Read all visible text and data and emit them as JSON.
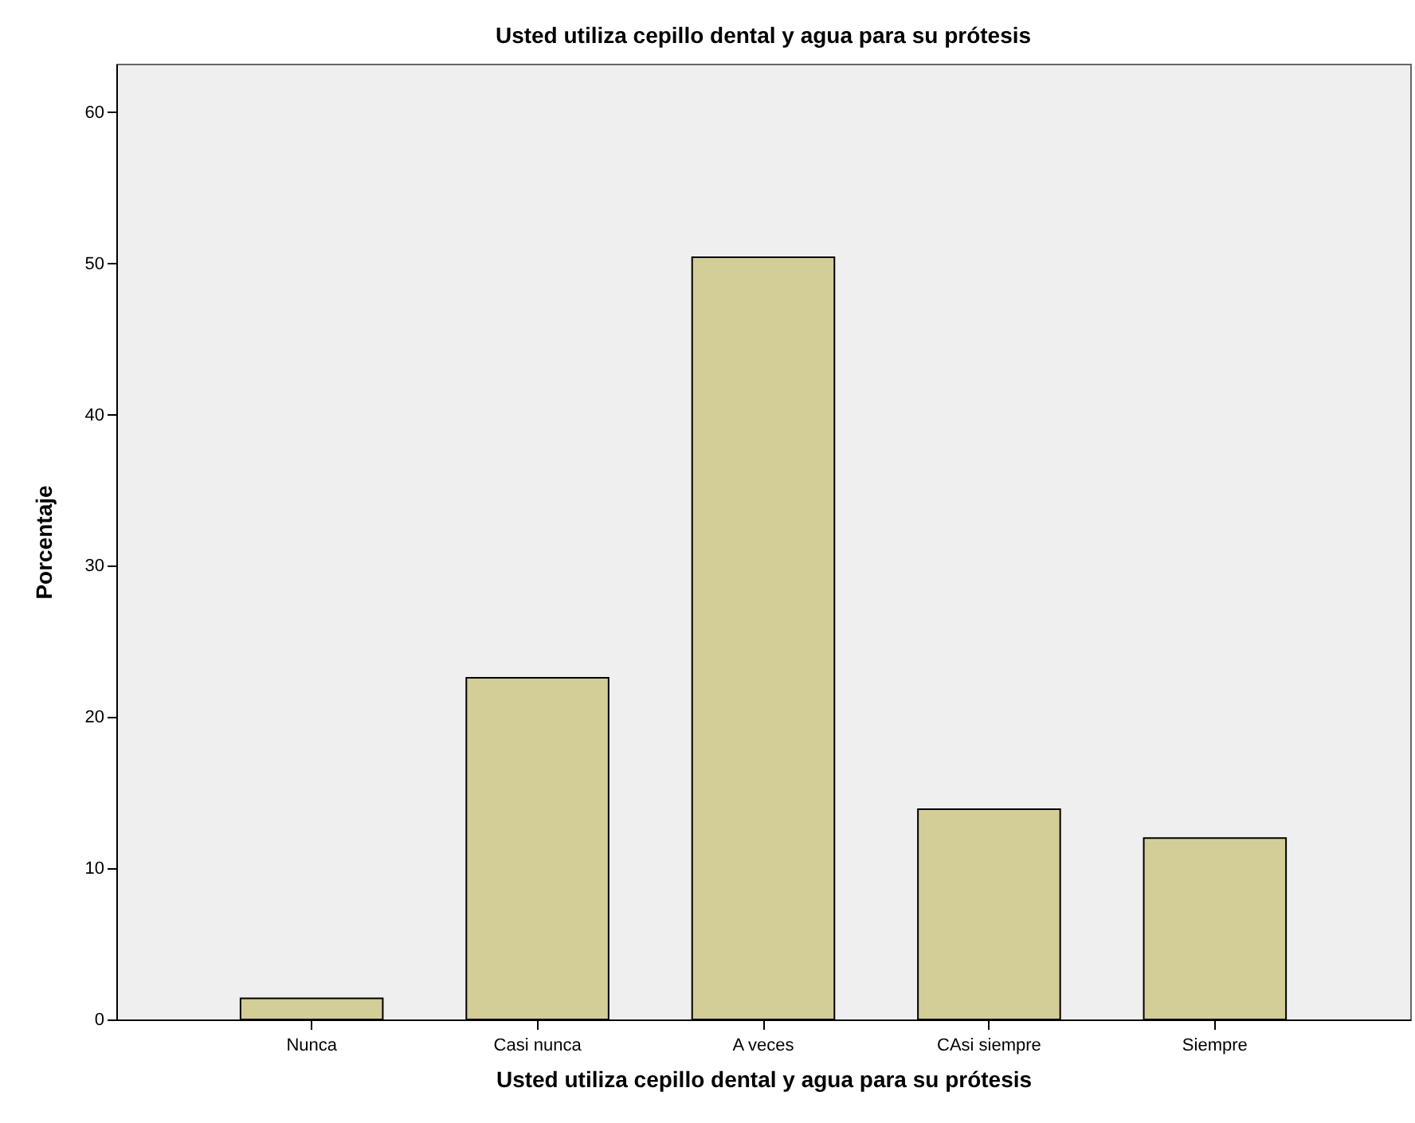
{
  "chart_data": {
    "type": "bar",
    "title": "Usted utiliza cepillo dental  y agua para su prótesis",
    "xlabel": "Usted utiliza cepillo dental  y agua para su prótesis",
    "ylabel": "Porcentaje",
    "categories": [
      "Nunca",
      "Casi nunca",
      "A veces",
      "CAsi siempre",
      "Siempre"
    ],
    "values": [
      1.4,
      22.6,
      50.4,
      13.9,
      12.0
    ],
    "color": "#d3ce97",
    "ylim": [
      0,
      63.2
    ],
    "yticks": [
      0,
      10,
      20,
      30,
      40,
      50,
      60
    ],
    "grid": false
  }
}
